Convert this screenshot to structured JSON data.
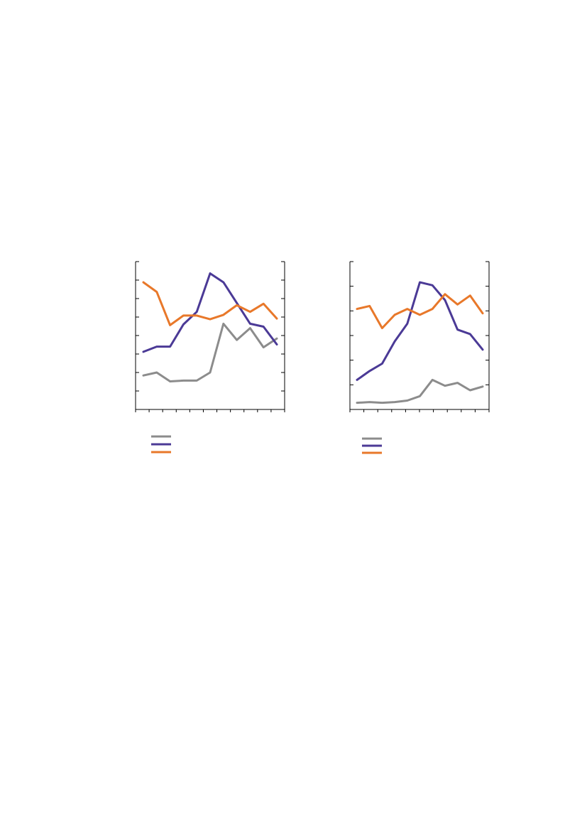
{
  "chart_data": [
    {
      "type": "line",
      "title": "",
      "xlabel": "",
      "ylabel": "",
      "y2label": "",
      "x_ticks": 12,
      "y_ticks": 9,
      "y2_ticks": 9,
      "ylim": [
        0,
        100
      ],
      "grid": false,
      "legend_position": "bottom-left",
      "x": [
        0,
        1,
        2,
        3,
        4,
        5,
        6,
        7,
        8,
        9,
        10
      ],
      "series": [
        {
          "color": "#8c8c8c",
          "values": [
            23,
            25,
            19,
            19.5,
            19.5,
            25,
            58,
            47,
            55,
            42,
            48
          ]
        },
        {
          "color": "#4b3a96",
          "values": [
            39,
            42.5,
            42.5,
            57.5,
            66,
            92,
            86,
            72,
            58,
            56,
            44
          ]
        },
        {
          "color": "#e8782a",
          "values": [
            86,
            79.5,
            57,
            63.5,
            63.5,
            61,
            64,
            70.5,
            66,
            71.5,
            61.5
          ]
        }
      ]
    },
    {
      "type": "line",
      "title": "",
      "xlabel": "",
      "ylabel": "",
      "y2label": "",
      "x_ticks": 11,
      "y_ticks": 7,
      "y2_ticks": 7,
      "ylim": [
        0,
        100
      ],
      "grid": false,
      "legend_position": "bottom-left",
      "x": [
        0,
        1,
        2,
        3,
        4,
        5,
        6,
        7,
        8,
        9,
        10
      ],
      "series": [
        {
          "color": "#8c8c8c",
          "values": [
            4.5,
            5,
            4.5,
            5,
            6,
            9,
            20,
            16,
            18,
            13,
            15.5
          ]
        },
        {
          "color": "#4b3a96",
          "values": [
            20,
            26,
            31,
            46,
            58,
            86,
            84,
            74,
            54,
            51,
            40.5
          ]
        },
        {
          "color": "#e8782a",
          "values": [
            68,
            70,
            55,
            64,
            68,
            64,
            68,
            78,
            71,
            77,
            65
          ]
        }
      ]
    }
  ]
}
